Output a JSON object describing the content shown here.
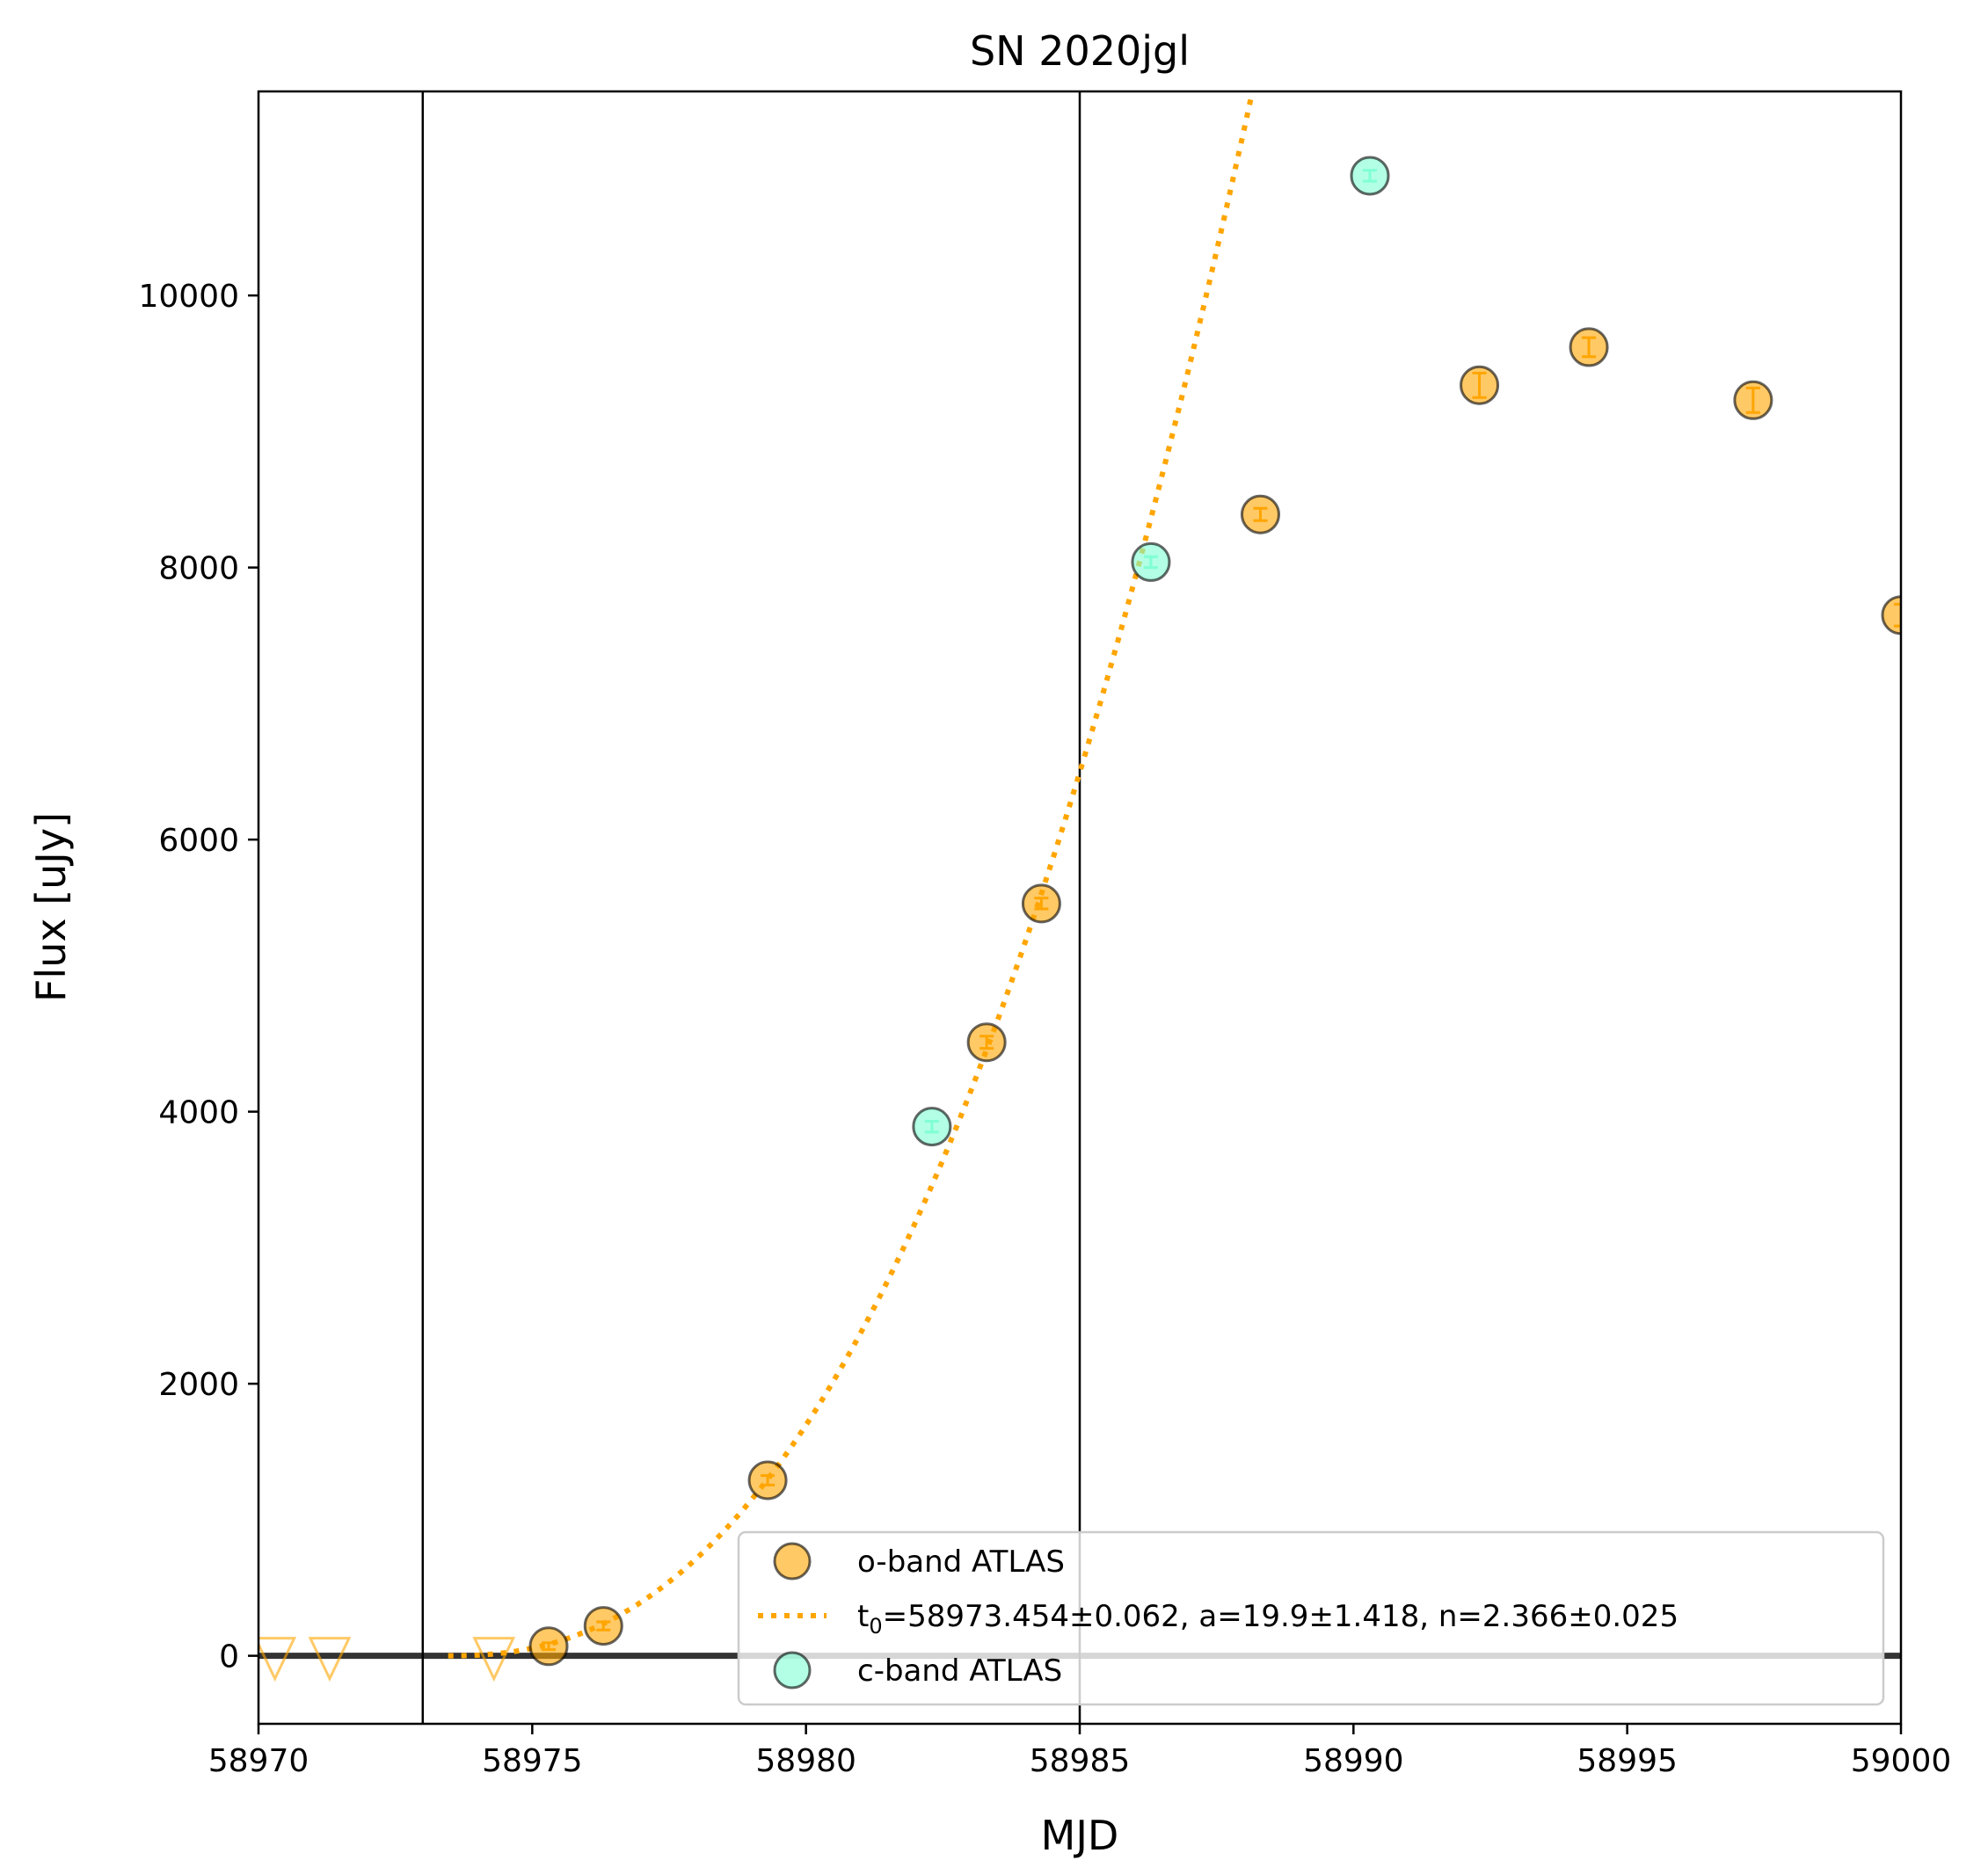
{
  "chart_data": {
    "type": "scatter",
    "title": "SN 2020jgl",
    "xlabel": "MJD",
    "ylabel": "Flux [uJy]",
    "xlim": [
      58970,
      59000
    ],
    "ylim": [
      -500,
      11500
    ],
    "xticks": [
      "58970",
      "58975",
      "58980",
      "58985",
      "58990",
      "58995",
      "59000"
    ],
    "yticks": [
      "0",
      "2000",
      "4000",
      "6000",
      "8000",
      "10000"
    ],
    "grid": false,
    "legend_position": "lower-right",
    "vlines": [
      58973.0,
      58985.0
    ],
    "hline": 0,
    "series": [
      {
        "name": "o-band ATLAS",
        "kind": "points",
        "color": "#ffa500",
        "x": [
          58975.3,
          58976.3,
          58979.3,
          58983.3,
          58984.3,
          58988.3,
          58992.3,
          58994.3,
          58997.3,
          59000.0
        ],
        "y": [
          70,
          220,
          1290,
          4510,
          5530,
          8390,
          9340,
          9620,
          9230,
          7650
        ],
        "err": [
          25,
          30,
          35,
          45,
          40,
          45,
          90,
          70,
          90,
          80
        ]
      },
      {
        "name": "c-band ATLAS",
        "kind": "points",
        "color": "#7fffd4",
        "x": [
          58982.3,
          58986.3,
          58990.3
        ],
        "y": [
          3890,
          8040,
          10880
        ],
        "err": [
          40,
          40,
          40
        ]
      },
      {
        "name": "o-band upper limits",
        "kind": "upper-limits",
        "color": "#ffa500",
        "x": [
          58970.3,
          58971.3,
          58974.3
        ],
        "y": [
          0,
          0,
          0
        ]
      },
      {
        "name_parts": [
          "t",
          "0",
          "=58973.454±0.062, a=19.9±1.418, n=2.366±0.025"
        ],
        "kind": "fit-curve",
        "color": "#ffa500",
        "t0": 58973.454,
        "a": 19.9,
        "n": 2.366
      }
    ]
  }
}
